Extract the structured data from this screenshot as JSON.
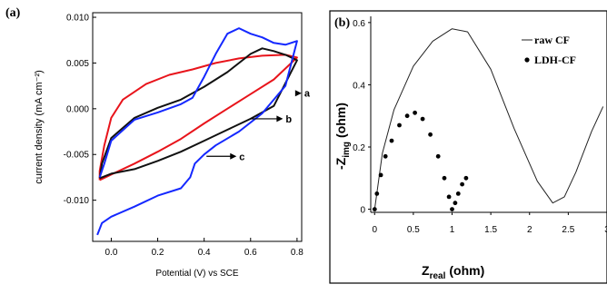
{
  "chart_data": [
    {
      "panel_label": "(a)",
      "type": "line",
      "xlabel": "Potential (V) vs SCE",
      "ylabel": "current density (mA cm⁻²)",
      "xlim": [
        -0.08,
        0.82
      ],
      "ylim": [
        -0.0145,
        0.0105
      ],
      "x_ticks": [
        "0.0",
        "0.2",
        "0.4",
        "0.6",
        "0.8"
      ],
      "x_tick_values": [
        0.0,
        0.2,
        0.4,
        0.6,
        0.8
      ],
      "y_ticks": [
        "0.010",
        "0.005",
        "0.000",
        "-0.005",
        "-0.010"
      ],
      "y_tick_values": [
        0.01,
        0.005,
        0.0,
        -0.005,
        -0.01
      ],
      "annotations": [
        {
          "label": "a",
          "arrow_from": [
            0.8,
            0.0017
          ],
          "text_at": [
            0.835,
            0.0017
          ]
        },
        {
          "label": "b",
          "arrow_from": [
            0.6,
            -0.0011
          ],
          "text_at": [
            0.755,
            -0.0011
          ]
        },
        {
          "label": "c",
          "arrow_from": [
            0.41,
            -0.0052
          ],
          "text_at": [
            0.555,
            -0.0052
          ]
        }
      ],
      "series": [
        {
          "color": "#e8141b",
          "points": [
            [
              -0.05,
              -0.0078
            ],
            [
              0.0,
              -0.0072
            ],
            [
              0.1,
              -0.006
            ],
            [
              0.2,
              -0.0047
            ],
            [
              0.3,
              -0.0033
            ],
            [
              0.4,
              -0.0016
            ],
            [
              0.5,
              0.0
            ],
            [
              0.6,
              0.0016
            ],
            [
              0.7,
              0.0032
            ],
            [
              0.8,
              0.0056
            ],
            [
              0.75,
              0.0059
            ],
            [
              0.65,
              0.0058
            ],
            [
              0.55,
              0.0055
            ],
            [
              0.45,
              0.005
            ],
            [
              0.35,
              0.0043
            ],
            [
              0.25,
              0.0037
            ],
            [
              0.15,
              0.0027
            ],
            [
              0.05,
              0.001
            ],
            [
              0.0,
              -0.001
            ],
            [
              -0.03,
              -0.004
            ],
            [
              -0.05,
              -0.0068
            ],
            [
              -0.05,
              -0.0078
            ]
          ]
        },
        {
          "color": "#111111",
          "points": [
            [
              -0.05,
              -0.0076
            ],
            [
              0.0,
              -0.0071
            ],
            [
              0.1,
              -0.0066
            ],
            [
              0.2,
              -0.0057
            ],
            [
              0.3,
              -0.0047
            ],
            [
              0.4,
              -0.0035
            ],
            [
              0.5,
              -0.0023
            ],
            [
              0.6,
              -0.0011
            ],
            [
              0.7,
              0.0003
            ],
            [
              0.8,
              0.0053
            ],
            [
              0.75,
              0.0059
            ],
            [
              0.7,
              0.0063
            ],
            [
              0.65,
              0.0066
            ],
            [
              0.6,
              0.006
            ],
            [
              0.5,
              0.004
            ],
            [
              0.4,
              0.0024
            ],
            [
              0.3,
              0.001
            ],
            [
              0.2,
              0.0001
            ],
            [
              0.1,
              -0.001
            ],
            [
              0.0,
              -0.0032
            ],
            [
              -0.04,
              -0.006
            ],
            [
              -0.05,
              -0.0076
            ]
          ]
        },
        {
          "color": "#1428ff",
          "points": [
            [
              -0.06,
              -0.0138
            ],
            [
              -0.04,
              -0.0125
            ],
            [
              0.0,
              -0.0118
            ],
            [
              0.1,
              -0.0107
            ],
            [
              0.2,
              -0.0095
            ],
            [
              0.3,
              -0.0087
            ],
            [
              0.34,
              -0.0075
            ],
            [
              0.36,
              -0.006
            ],
            [
              0.4,
              -0.005
            ],
            [
              0.45,
              -0.004
            ],
            [
              0.55,
              -0.0025
            ],
            [
              0.65,
              -0.0005
            ],
            [
              0.75,
              0.0025
            ],
            [
              0.8,
              0.0074
            ],
            [
              0.75,
              0.007
            ],
            [
              0.7,
              0.0072
            ],
            [
              0.65,
              0.0078
            ],
            [
              0.6,
              0.0082
            ],
            [
              0.55,
              0.0088
            ],
            [
              0.5,
              0.0082
            ],
            [
              0.45,
              0.006
            ],
            [
              0.4,
              0.0035
            ],
            [
              0.35,
              0.0012
            ],
            [
              0.3,
              0.0005
            ],
            [
              0.2,
              -0.0004
            ],
            [
              0.1,
              -0.0012
            ],
            [
              0.0,
              -0.0035
            ],
            [
              -0.03,
              -0.006
            ],
            [
              -0.05,
              -0.0075
            ]
          ]
        }
      ]
    },
    {
      "panel_label": "(b)",
      "type": "scatter",
      "xlabel": "Z",
      "xlabel_sub": "real",
      "xlabel_unit": "(ohm)",
      "ylabel_prefix": "-Z",
      "ylabel_sub": "img",
      "ylabel_unit": "(ohm)",
      "xlim": [
        -0.05,
        3.0
      ],
      "ylim": [
        -0.01,
        0.62
      ],
      "x_ticks": [
        "0",
        "0.5",
        "1",
        "1.5",
        "2",
        "2.5",
        "3"
      ],
      "x_tick_values": [
        0,
        0.5,
        1,
        1.5,
        2,
        2.5,
        3
      ],
      "y_ticks": [
        "0",
        "0.2",
        "0.4",
        "0.6"
      ],
      "y_tick_values": [
        0,
        0.2,
        0.4,
        0.6
      ],
      "legend": {
        "placement": "top-right",
        "entries": [
          "raw CF",
          "LDH-CF"
        ]
      },
      "series": [
        {
          "name": "raw CF",
          "style": "line",
          "color": "#222222",
          "points": [
            [
              0.0,
              0.0
            ],
            [
              0.1,
              0.18
            ],
            [
              0.25,
              0.32
            ],
            [
              0.5,
              0.46
            ],
            [
              0.75,
              0.54
            ],
            [
              1.0,
              0.58
            ],
            [
              1.2,
              0.57
            ],
            [
              1.5,
              0.45
            ],
            [
              1.8,
              0.26
            ],
            [
              2.1,
              0.09
            ],
            [
              2.3,
              0.02
            ],
            [
              2.45,
              0.04
            ],
            [
              2.6,
              0.12
            ],
            [
              2.8,
              0.25
            ],
            [
              2.95,
              0.33
            ]
          ]
        },
        {
          "name": "LDH-CF",
          "style": "dots",
          "color": "#000000",
          "points": [
            [
              0.0,
              0.0
            ],
            [
              0.03,
              0.05
            ],
            [
              0.08,
              0.11
            ],
            [
              0.14,
              0.17
            ],
            [
              0.22,
              0.22
            ],
            [
              0.32,
              0.27
            ],
            [
              0.42,
              0.3
            ],
            [
              0.52,
              0.31
            ],
            [
              0.62,
              0.29
            ],
            [
              0.72,
              0.24
            ],
            [
              0.82,
              0.17
            ],
            [
              0.9,
              0.1
            ],
            [
              0.96,
              0.04
            ],
            [
              1.0,
              0.0
            ],
            [
              1.04,
              0.02
            ],
            [
              1.08,
              0.05
            ],
            [
              1.13,
              0.08
            ],
            [
              1.18,
              0.1
            ]
          ]
        }
      ]
    }
  ]
}
